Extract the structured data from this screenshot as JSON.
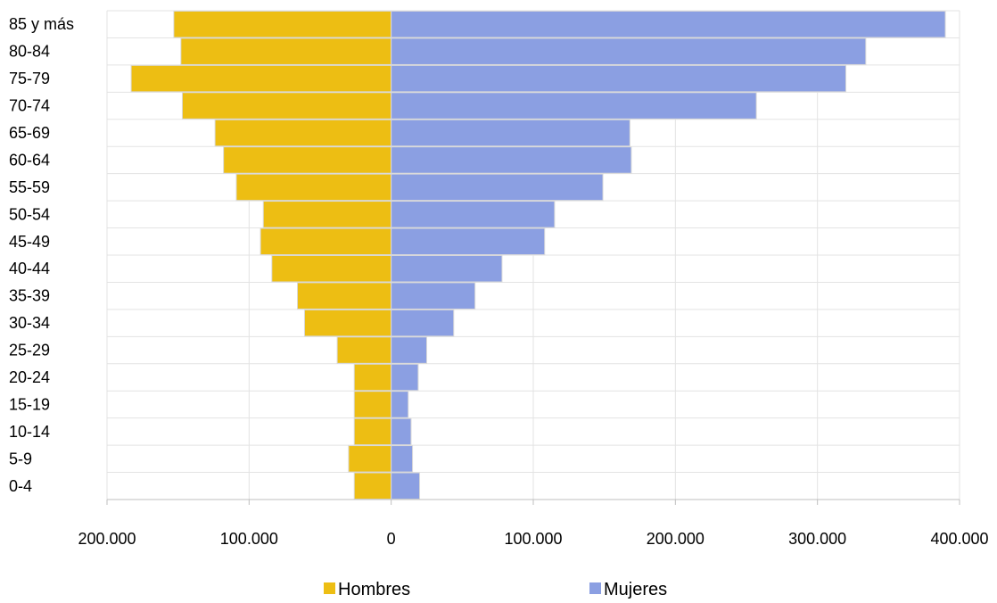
{
  "chart_data": {
    "type": "bar",
    "orientation": "horizontal",
    "layout": "population-pyramid",
    "categories": [
      "85 y más",
      "80-84",
      "75-79",
      "70-74",
      "65-69",
      "60-64",
      "55-59",
      "50-54",
      "45-49",
      "40-44",
      "35-39",
      "30-34",
      "25-29",
      "20-24",
      "15-19",
      "10-14",
      "5-9",
      "0-4"
    ],
    "series": [
      {
        "name": "Hombres",
        "color": "#EDBE13",
        "direction": "left",
        "values": [
          153000,
          148000,
          183000,
          147000,
          124000,
          118000,
          109000,
          90000,
          92000,
          84000,
          66000,
          61000,
          38000,
          26000,
          26000,
          26000,
          30000,
          26000
        ]
      },
      {
        "name": "Mujeres",
        "color": "#8B9FE2",
        "direction": "right",
        "values": [
          390000,
          334000,
          320000,
          257000,
          168000,
          169000,
          149000,
          115000,
          108000,
          78000,
          59000,
          44000,
          25000,
          19000,
          12000,
          14000,
          15000,
          20000
        ]
      }
    ],
    "xlim": [
      -200000,
      400000
    ],
    "x_ticks": [
      -200000,
      -100000,
      0,
      100000,
      200000,
      300000,
      400000
    ],
    "x_tick_labels": [
      "200.000",
      "100.000",
      "0",
      "100.000",
      "200.000",
      "300.000",
      "400.000"
    ],
    "grid": true,
    "legend_position": "bottom",
    "title": "",
    "xlabel": "",
    "ylabel": ""
  }
}
